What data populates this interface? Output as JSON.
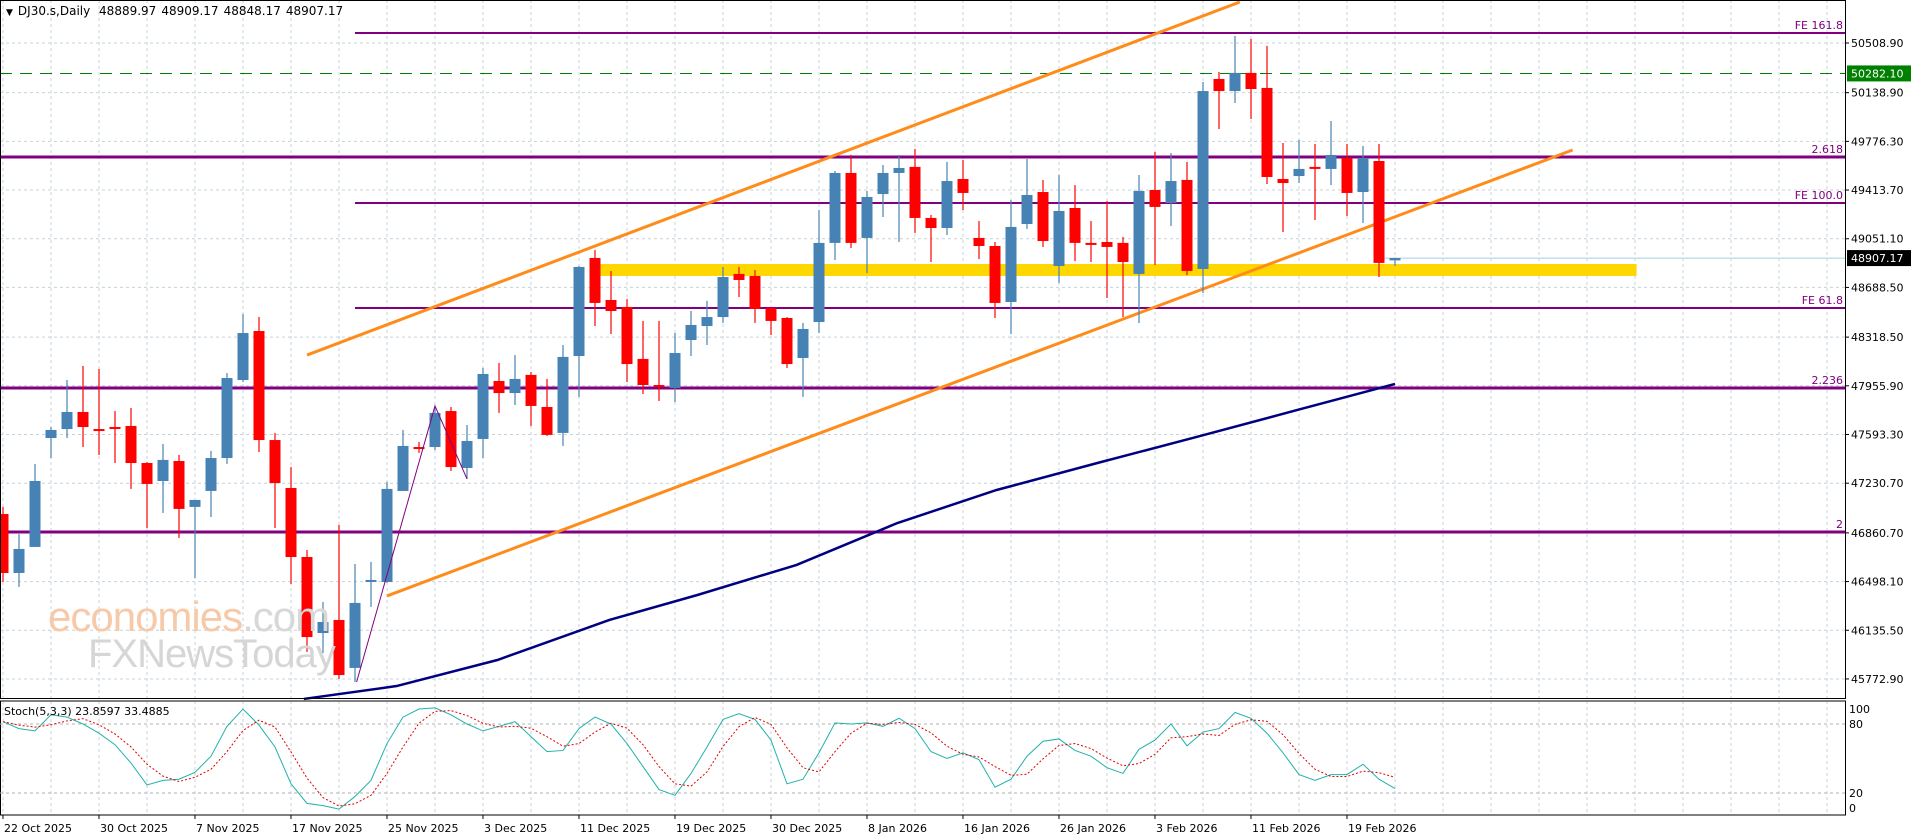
{
  "header": {
    "symbol_timeframe": "DJ30.s,Daily",
    "open": "48889.97",
    "high": "48909.17",
    "low": "48848.17",
    "close": "48907.17"
  },
  "watermark": {
    "brand": "economies",
    "brand_suffix": ".com",
    "line2": "FXNewsToday"
  },
  "colors": {
    "bull": "#4682b4",
    "bear": "#ff0000",
    "level": "#800080",
    "channel": "#ff8c1a",
    "zone": "#ffd700",
    "ma": "#000080",
    "stoch_k": "#20b2aa",
    "stoch_d": "#e00000",
    "marker": "#008000",
    "grid": "#c4d4dc"
  },
  "chart_data": {
    "type": "candlestick",
    "title": "DJ30.s,Daily",
    "ylim": [
      45631,
      50829
    ],
    "price_ticks": [
      "50508.90",
      "50138.90",
      "49776.30",
      "49413.70",
      "49051.10",
      "48688.50",
      "48318.50",
      "47955.90",
      "47593.30",
      "47230.70",
      "46860.70",
      "46498.10",
      "46135.50",
      "45772.90"
    ],
    "date_labels": [
      {
        "bar": 0,
        "label": "22 Oct 2025"
      },
      {
        "bar": 6,
        "label": "30 Oct 2025"
      },
      {
        "bar": 12,
        "label": "7 Nov 2025"
      },
      {
        "bar": 18,
        "label": "17 Nov 2025"
      },
      {
        "bar": 24,
        "label": "25 Nov 2025"
      },
      {
        "bar": 30,
        "label": "3 Dec 2025"
      },
      {
        "bar": 36,
        "label": "11 Dec 2025"
      },
      {
        "bar": 42,
        "label": "19 Dec 2025"
      },
      {
        "bar": 48,
        "label": "30 Dec 2025"
      },
      {
        "bar": 54,
        "label": "8 Jan 2026"
      },
      {
        "bar": 60,
        "label": "16 Jan 2026"
      },
      {
        "bar": 66,
        "label": "26 Jan 2026"
      },
      {
        "bar": 72,
        "label": "3 Feb 2026"
      },
      {
        "bar": 78,
        "label": "11 Feb 2026"
      },
      {
        "bar": 84,
        "label": "19 Feb 2026"
      }
    ],
    "candles_ohlc": [
      [
        47001,
        47054,
        46495,
        46562
      ],
      [
        46562,
        46852,
        46458,
        46741
      ],
      [
        46756,
        47374,
        46756,
        47247
      ],
      [
        47567,
        47649,
        47418,
        47627
      ],
      [
        47634,
        47999,
        47567,
        47761
      ],
      [
        47761,
        48104,
        47500,
        47649
      ],
      [
        47634,
        48081,
        47441,
        47627
      ],
      [
        47649,
        47768,
        47381,
        47634
      ],
      [
        47657,
        47791,
        47188,
        47381
      ],
      [
        47381,
        47389,
        46897,
        47225
      ],
      [
        47247,
        47523,
        47009,
        47404
      ],
      [
        47396,
        47441,
        46823,
        47039
      ],
      [
        47054,
        47106,
        46525,
        47106
      ],
      [
        47173,
        47471,
        46979,
        47418
      ],
      [
        47418,
        48051,
        47374,
        48014
      ],
      [
        47999,
        48491,
        47984,
        48349
      ],
      [
        48364,
        48468,
        47463,
        47552
      ],
      [
        47552,
        47605,
        46897,
        47232
      ],
      [
        47195,
        47351,
        46480,
        46681
      ],
      [
        46681,
        46733,
        45974,
        46085
      ],
      [
        46115,
        46346,
        45966,
        46197
      ],
      [
        46212,
        46919,
        45773,
        45802
      ],
      [
        45855,
        46629,
        45750,
        46339
      ],
      [
        46502,
        46644,
        46309,
        46510
      ],
      [
        46495,
        47240,
        46488,
        47188
      ],
      [
        47173,
        47627,
        47173,
        47508
      ],
      [
        47500,
        47538,
        47456,
        47485
      ],
      [
        47500,
        47806,
        47478,
        47754
      ],
      [
        47768,
        47798,
        47322,
        47351
      ],
      [
        47344,
        47664,
        47262,
        47545
      ],
      [
        47560,
        48089,
        47418,
        48044
      ],
      [
        47992,
        48126,
        47754,
        47902
      ],
      [
        47902,
        48185,
        47813,
        48007
      ],
      [
        48037,
        48059,
        47657,
        47806
      ],
      [
        47798,
        48007,
        47582,
        47590
      ],
      [
        47605,
        48260,
        47508,
        48171
      ],
      [
        48178,
        48848,
        47873,
        48841
      ],
      [
        48908,
        48967,
        48401,
        48573
      ],
      [
        48595,
        48811,
        48342,
        48513
      ],
      [
        48543,
        48602,
        47984,
        48118
      ],
      [
        48156,
        48439,
        47895,
        47962
      ],
      [
        47962,
        48439,
        47843,
        47955
      ],
      [
        47940,
        48349,
        47835,
        48200
      ],
      [
        48297,
        48513,
        48178,
        48409
      ],
      [
        48401,
        48588,
        48260,
        48468
      ],
      [
        48468,
        48841,
        48424,
        48766
      ],
      [
        48789,
        48841,
        48617,
        48744
      ],
      [
        48774,
        48818,
        48424,
        48528
      ],
      [
        48535,
        48543,
        48334,
        48439
      ],
      [
        48461,
        48468,
        48089,
        48118
      ],
      [
        48163,
        48424,
        47873,
        48379
      ],
      [
        48431,
        49265,
        48349,
        49020
      ],
      [
        49020,
        49556,
        48893,
        49541
      ],
      [
        49541,
        49675,
        48982,
        49020
      ],
      [
        49057,
        49407,
        48796,
        49362
      ],
      [
        49384,
        49600,
        49213,
        49541
      ],
      [
        49541,
        49675,
        49027,
        49578
      ],
      [
        49586,
        49720,
        49094,
        49206
      ],
      [
        49206,
        49228,
        48878,
        49131
      ],
      [
        49131,
        49623,
        49079,
        49481
      ],
      [
        49496,
        49638,
        49265,
        49392
      ],
      [
        49057,
        49183,
        48900,
        48997
      ],
      [
        48997,
        49027,
        48461,
        48573
      ],
      [
        48580,
        49340,
        48342,
        49139
      ],
      [
        49161,
        49645,
        49124,
        49377
      ],
      [
        49399,
        49489,
        48990,
        49034
      ],
      [
        48848,
        49526,
        48722,
        49258
      ],
      [
        49280,
        49451,
        48885,
        49020
      ],
      [
        49020,
        49183,
        48878,
        49005
      ],
      [
        49027,
        49332,
        48610,
        48990
      ],
      [
        49020,
        49064,
        48468,
        48878
      ],
      [
        48789,
        49526,
        48424,
        49407
      ],
      [
        49414,
        49697,
        48856,
        49288
      ],
      [
        49317,
        49690,
        49146,
        49481
      ],
      [
        49489,
        49623,
        48781,
        48811
      ],
      [
        48826,
        50218,
        48647,
        50151
      ],
      [
        50241,
        50293,
        49868,
        50151
      ],
      [
        50151,
        50561,
        50062,
        50286
      ],
      [
        50286,
        50539,
        49943,
        50166
      ],
      [
        50174,
        50487,
        49459,
        49511
      ],
      [
        49496,
        49764,
        49101,
        49466
      ],
      [
        49518,
        49787,
        49466,
        49571
      ],
      [
        49586,
        49757,
        49191,
        49571
      ],
      [
        49571,
        49928,
        49451,
        49675
      ],
      [
        49653,
        49757,
        49221,
        49392
      ],
      [
        49399,
        49742,
        49168,
        49653
      ],
      [
        49630,
        49757,
        48766,
        48871
      ],
      [
        48889.97,
        48909.17,
        48848.17,
        48907.17
      ]
    ],
    "moving_average": [
      [
        18.8,
        45624
      ],
      [
        24.6,
        45720
      ],
      [
        30.9,
        45914
      ],
      [
        37.9,
        46212
      ],
      [
        43.4,
        46398
      ],
      [
        49.6,
        46622
      ],
      [
        55.9,
        46934
      ],
      [
        62.1,
        47180
      ],
      [
        68.4,
        47381
      ],
      [
        74.6,
        47575
      ],
      [
        80.9,
        47776
      ],
      [
        87,
        47970
      ]
    ],
    "levels": [
      {
        "label": "FE 161.8",
        "price": 50583,
        "start_bar": 22,
        "weight": "fe"
      },
      {
        "label": "2.618",
        "price": 49660,
        "start_bar": -1,
        "weight": "main"
      },
      {
        "label": "FE 100.0",
        "price": 49317,
        "start_bar": 22,
        "weight": "fe"
      },
      {
        "label": "FE 61.8",
        "price": 48535,
        "start_bar": 22,
        "weight": "fe"
      },
      {
        "label": "2.236",
        "price": 47940,
        "start_bar": -1,
        "weight": "main"
      },
      {
        "label": "2",
        "price": 46867,
        "start_bar": -1,
        "weight": "main"
      }
    ],
    "marker_price": "50282.10",
    "marker_price_value": 50282.1,
    "last_price": "48907.17",
    "last_price_value": 48907.17,
    "channel_upper": [
      [
        19,
        48185
      ],
      [
        77.3,
        50814
      ]
    ],
    "channel_lower": [
      [
        24,
        46391
      ],
      [
        98.1,
        49712
      ]
    ],
    "support_zone": {
      "from_bar": 37.3,
      "to_bar": 102.1,
      "low": 48774,
      "high": 48863
    },
    "zigzag": [
      [
        22.1,
        45750
      ],
      [
        27,
        47806
      ],
      [
        29,
        47262
      ]
    ],
    "stochastic": {
      "label": "Stoch(5,3,3) 23.8597 33.4885",
      "k": [
        82,
        76,
        74,
        88,
        86,
        80,
        72,
        62,
        46,
        27,
        31,
        32,
        38,
        52,
        78,
        93,
        79,
        60,
        28,
        11,
        9,
        6,
        17,
        31,
        63,
        86,
        93,
        94,
        88,
        80,
        74,
        78,
        82,
        69,
        56,
        57,
        76,
        86,
        80,
        63,
        43,
        23,
        18,
        37,
        60,
        84,
        89,
        84,
        66,
        28,
        32,
        55,
        81,
        80,
        81,
        78,
        85,
        76,
        56,
        50,
        55,
        49,
        25,
        32,
        52,
        65,
        67,
        57,
        52,
        42,
        37,
        58,
        66,
        80,
        61,
        73,
        76,
        90,
        85,
        72,
        55,
        36,
        31,
        36,
        36,
        45,
        32,
        23.86
      ],
      "d_period": 3,
      "levels": [
        80,
        20
      ],
      "ticks": [
        "100",
        "80",
        "20",
        "0"
      ]
    }
  }
}
